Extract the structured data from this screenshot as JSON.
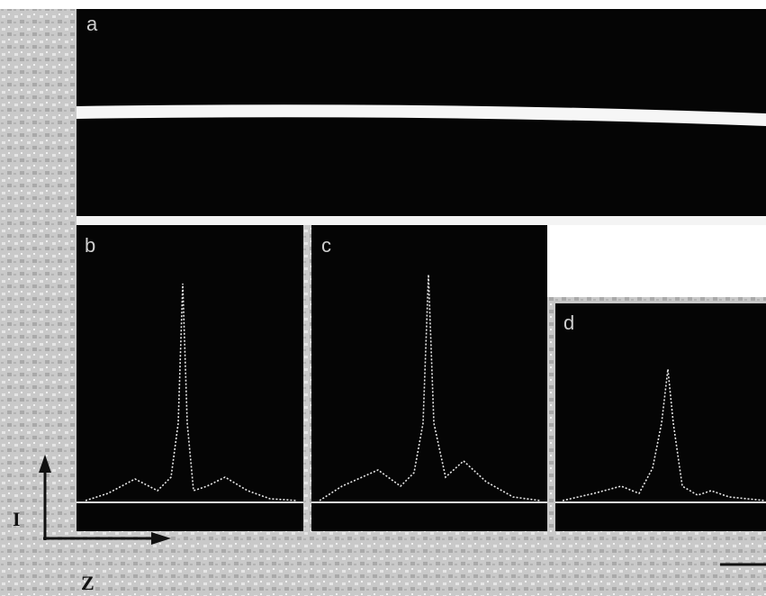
{
  "panels": [
    {
      "label": "a"
    },
    {
      "label": "b"
    },
    {
      "label": "c"
    },
    {
      "label": "d"
    }
  ],
  "axes": {
    "vertical": "I",
    "horizontal": "Z"
  }
}
